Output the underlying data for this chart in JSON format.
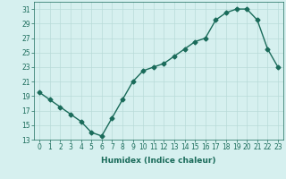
{
  "x": [
    0,
    1,
    2,
    3,
    4,
    5,
    6,
    7,
    8,
    9,
    10,
    11,
    12,
    13,
    14,
    15,
    16,
    17,
    18,
    19,
    20,
    21,
    22,
    23
  ],
  "y": [
    19.5,
    18.5,
    17.5,
    16.5,
    15.5,
    14.0,
    13.5,
    16.0,
    18.5,
    21.0,
    22.5,
    23.0,
    23.5,
    24.5,
    25.5,
    26.5,
    27.0,
    29.5,
    30.5,
    31.0,
    31.0,
    29.5,
    25.5,
    23.0
  ],
  "line_color": "#1a6b5a",
  "marker": "D",
  "marker_size": 2.5,
  "bg_color": "#d6f0ef",
  "grid_color": "#b8dbd9",
  "xlabel": "Humidex (Indice chaleur)",
  "xlim": [
    -0.5,
    23.5
  ],
  "ylim": [
    13,
    32
  ],
  "yticks": [
    13,
    15,
    17,
    19,
    21,
    23,
    25,
    27,
    29,
    31
  ],
  "xticks": [
    0,
    1,
    2,
    3,
    4,
    5,
    6,
    7,
    8,
    9,
    10,
    11,
    12,
    13,
    14,
    15,
    16,
    17,
    18,
    19,
    20,
    21,
    22,
    23
  ],
  "label_fontsize": 6.5,
  "tick_fontsize": 5.5,
  "line_width": 1.0
}
